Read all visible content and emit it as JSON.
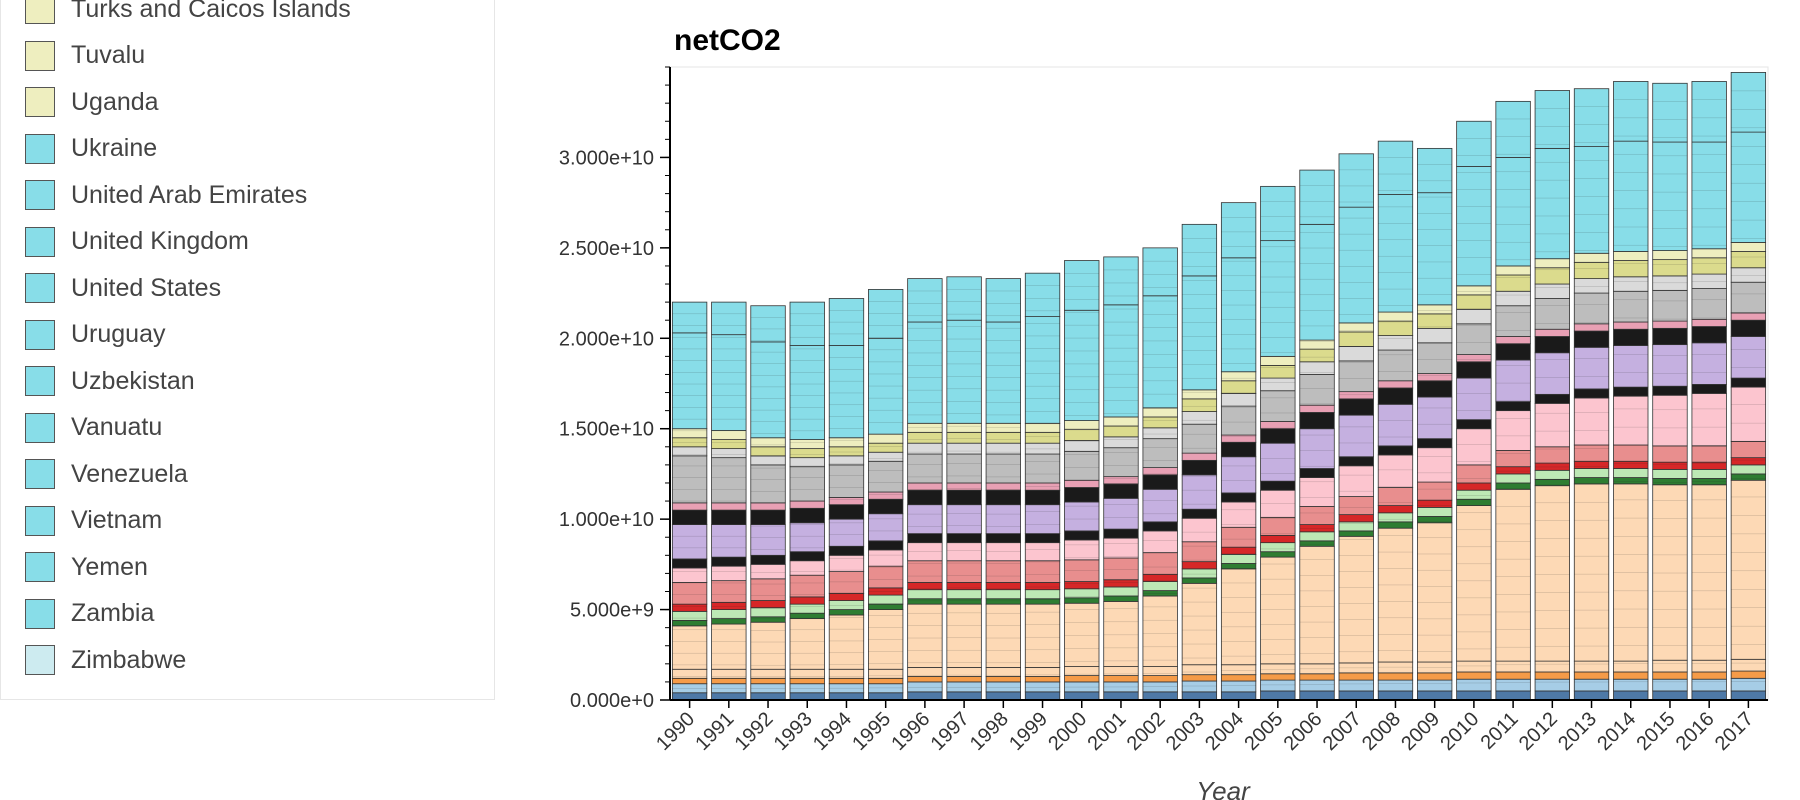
{
  "legend": {
    "items": [
      {
        "label": "Turks and Caicos Islands",
        "color": "#eeeebf"
      },
      {
        "label": "Tuvalu",
        "color": "#eeeebf"
      },
      {
        "label": "Uganda",
        "color": "#eeeebf"
      },
      {
        "label": "Ukraine",
        "color": "#88dde8"
      },
      {
        "label": "United Arab Emirates",
        "color": "#88dde8"
      },
      {
        "label": "United Kingdom",
        "color": "#88dde8"
      },
      {
        "label": "United States",
        "color": "#88dde8"
      },
      {
        "label": "Uruguay",
        "color": "#88dde8"
      },
      {
        "label": "Uzbekistan",
        "color": "#88dde8"
      },
      {
        "label": "Vanuatu",
        "color": "#88dde8"
      },
      {
        "label": "Venezuela",
        "color": "#88dde8"
      },
      {
        "label": "Vietnam",
        "color": "#88dde8"
      },
      {
        "label": "Yemen",
        "color": "#88dde8"
      },
      {
        "label": "Zambia",
        "color": "#88dde8"
      },
      {
        "label": "Zimbabwe",
        "color": "#cdebf0"
      }
    ]
  },
  "chart_data": {
    "type": "bar",
    "stacked": true,
    "title": "netCO2",
    "xlabel": "Year",
    "ylabel": "",
    "ylim": [
      0,
      35000000000
    ],
    "yticks": [
      {
        "value": 0,
        "label": "0.000e+0"
      },
      {
        "value": 5000000000,
        "label": "5.000e+9"
      },
      {
        "value": 10000000000,
        "label": "1.000e+10"
      },
      {
        "value": 15000000000,
        "label": "1.500e+10"
      },
      {
        "value": 20000000000,
        "label": "2.000e+10"
      },
      {
        "value": 25000000000,
        "label": "2.500e+10"
      },
      {
        "value": 30000000000,
        "label": "3.000e+10"
      }
    ],
    "categories": [
      "1990",
      "1991",
      "1992",
      "1993",
      "1994",
      "1995",
      "1996",
      "1997",
      "1998",
      "1999",
      "2000",
      "2001",
      "2002",
      "2003",
      "2004",
      "2005",
      "2006",
      "2007",
      "2008",
      "2009",
      "2010",
      "2011",
      "2012",
      "2013",
      "2014",
      "2015",
      "2016",
      "2017"
    ],
    "totals": [
      22000000000,
      22000000000,
      21800000000,
      22000000000,
      22200000000,
      22700000000,
      23300000000,
      23400000000,
      23300000000,
      23600000000,
      24300000000,
      24500000000,
      25000000000,
      26300000000,
      27500000000,
      28400000000,
      29300000000,
      30200000000,
      30900000000,
      30500000000,
      32000000000,
      33100000000,
      33700000000,
      33800000000,
      34200000000,
      34100000000,
      34200000000,
      34700000000
    ],
    "bands": [
      {
        "color": "#4e79a7",
        "values": [
          400000000.0,
          400000000.0,
          400000000.0,
          400000000.0,
          400000000.0,
          400000000.0,
          450000000.0,
          450000000.0,
          450000000.0,
          450000000.0,
          450000000.0,
          450000000.0,
          450000000.0,
          450000000.0,
          450000000.0,
          500000000.0,
          500000000.0,
          500000000.0,
          500000000.0,
          500000000.0,
          500000000.0,
          500000000.0,
          500000000.0,
          500000000.0,
          500000000.0,
          500000000.0,
          500000000.0,
          500000000.0
        ]
      },
      {
        "color": "#a6cde6",
        "values": [
          500000000.0,
          500000000.0,
          500000000.0,
          500000000.0,
          500000000.0,
          500000000.0,
          550000000.0,
          550000000.0,
          550000000.0,
          550000000.0,
          550000000.0,
          550000000.0,
          550000000.0,
          600000000.0,
          600000000.0,
          600000000.0,
          600000000.0,
          600000000.0,
          600000000.0,
          600000000.0,
          650000000.0,
          650000000.0,
          650000000.0,
          650000000.0,
          650000000.0,
          650000000.0,
          650000000.0,
          700000000.0
        ]
      },
      {
        "color": "#f59b48",
        "values": [
          300000000.0,
          300000000.0,
          300000000.0,
          300000000.0,
          300000000.0,
          300000000.0,
          300000000.0,
          300000000.0,
          300000000.0,
          300000000.0,
          350000000.0,
          350000000.0,
          350000000.0,
          350000000.0,
          350000000.0,
          350000000.0,
          350000000.0,
          400000000.0,
          400000000.0,
          400000000.0,
          400000000.0,
          400000000.0,
          400000000.0,
          400000000.0,
          400000000.0,
          400000000.0,
          400000000.0,
          400000000.0
        ]
      },
      {
        "color": "#fdd9b5",
        "values": [
          500000000.0,
          500000000.0,
          500000000.0,
          500000000.0,
          500000000.0,
          500000000.0,
          500000000.0,
          500000000.0,
          500000000.0,
          500000000.0,
          500000000.0,
          500000000.0,
          500000000.0,
          550000000.0,
          550000000.0,
          550000000.0,
          550000000.0,
          550000000.0,
          600000000.0,
          600000000.0,
          600000000.0,
          600000000.0,
          600000000.0,
          600000000.0,
          600000000.0,
          650000000.0,
          650000000.0,
          650000000.0
        ]
      },
      {
        "color": "#fdd9b5",
        "values": [
          2400000000.0,
          2500000000.0,
          2600000000.0,
          2800000000.0,
          3000000000.0,
          3300000000.0,
          3500000000.0,
          3500000000.0,
          3500000000.0,
          3500000000.0,
          3500000000.0,
          3600000000.0,
          3900000000.0,
          4500000000.0,
          5300000000.0,
          5900000000.0,
          6500000000.0,
          7000000000.0,
          7400000000.0,
          7700000000.0,
          8600000000.0,
          9500000000.0,
          9700000000.0,
          9800000000.0,
          9800000000.0,
          9700000000.0,
          9700000000.0,
          9900000000.0
        ]
      },
      {
        "color": "#2e7d32",
        "values": [
          300000000.0,
          300000000.0,
          300000000.0,
          300000000.0,
          300000000.0,
          300000000.0,
          300000000.0,
          300000000.0,
          300000000.0,
          300000000.0,
          300000000.0,
          300000000.0,
          300000000.0,
          300000000.0,
          300000000.0,
          300000000.0,
          300000000.0,
          300000000.0,
          350000000.0,
          350000000.0,
          350000000.0,
          350000000.0,
          350000000.0,
          350000000.0,
          350000000.0,
          350000000.0,
          350000000.0,
          350000000.0
        ]
      },
      {
        "color": "#bde8b5",
        "values": [
          500000000.0,
          500000000.0,
          500000000.0,
          500000000.0,
          500000000.0,
          500000000.0,
          500000000.0,
          500000000.0,
          500000000.0,
          500000000.0,
          500000000.0,
          500000000.0,
          500000000.0,
          500000000.0,
          500000000.0,
          500000000.0,
          500000000.0,
          500000000.0,
          500000000.0,
          500000000.0,
          500000000.0,
          500000000.0,
          500000000.0,
          500000000.0,
          500000000.0,
          500000000.0,
          500000000.0,
          500000000.0
        ]
      },
      {
        "color": "#d62728",
        "values": [
          400000000.0,
          400000000.0,
          400000000.0,
          400000000.0,
          400000000.0,
          400000000.0,
          400000000.0,
          400000000.0,
          400000000.0,
          400000000.0,
          400000000.0,
          400000000.0,
          400000000.0,
          400000000.0,
          400000000.0,
          400000000.0,
          400000000.0,
          400000000.0,
          400000000.0,
          400000000.0,
          400000000.0,
          400000000.0,
          400000000.0,
          400000000.0,
          400000000.0,
          400000000.0,
          400000000.0,
          400000000.0
        ]
      },
      {
        "color": "#e88e8e",
        "values": [
          1200000000.0,
          1200000000.0,
          1200000000.0,
          1200000000.0,
          1200000000.0,
          1200000000.0,
          1200000000.0,
          1200000000.0,
          1200000000.0,
          1200000000.0,
          1200000000.0,
          1200000000.0,
          1200000000.0,
          1100000000.0,
          1100000000.0,
          1000000000.0,
          1000000000.0,
          1000000000.0,
          1000000000.0,
          1000000000.0,
          1000000000.0,
          900000000.0,
          900000000.0,
          900000000.0,
          900000000.0,
          900000000.0,
          900000000.0,
          900000000.0
        ]
      },
      {
        "color": "#fcc5cf",
        "values": [
          800000000.0,
          800000000.0,
          800000000.0,
          800000000.0,
          900000000.0,
          900000000.0,
          1000000000.0,
          1000000000.0,
          1000000000.0,
          1000000000.0,
          1100000000.0,
          1100000000.0,
          1200000000.0,
          1300000000.0,
          1400000000.0,
          1500000000.0,
          1600000000.0,
          1700000000.0,
          1800000000.0,
          1900000000.0,
          2000000000.0,
          2200000000.0,
          2400000000.0,
          2600000000.0,
          2700000000.0,
          2800000000.0,
          2900000000.0,
          3000000000.0
        ]
      },
      {
        "color": "#1a1a1a",
        "values": [
          500000000.0,
          500000000.0,
          500000000.0,
          500000000.0,
          500000000.0,
          500000000.0,
          500000000.0,
          500000000.0,
          500000000.0,
          500000000.0,
          500000000.0,
          500000000.0,
          500000000.0,
          500000000.0,
          500000000.0,
          500000000.0,
          500000000.0,
          500000000.0,
          500000000.0,
          500000000.0,
          500000000.0,
          500000000.0,
          500000000.0,
          500000000.0,
          500000000.0,
          500000000.0,
          500000000.0,
          500000000.0
        ]
      },
      {
        "color": "#c5b0e0",
        "values": [
          1900000000.0,
          1800000000.0,
          1700000000.0,
          1600000000.0,
          1500000000.0,
          1500000000.0,
          1600000000.0,
          1600000000.0,
          1600000000.0,
          1600000000.0,
          1600000000.0,
          1700000000.0,
          1800000000.0,
          1900000000.0,
          2000000000.0,
          2100000000.0,
          2200000000.0,
          2300000000.0,
          2300000000.0,
          2300000000.0,
          2300000000.0,
          2300000000.0,
          2300000000.0,
          2300000000.0,
          2300000000.0,
          2300000000.0,
          2300000000.0,
          2300000000.0
        ]
      },
      {
        "color": "#1a1a1a",
        "values": [
          800000000.0,
          800000000.0,
          800000000.0,
          800000000.0,
          800000000.0,
          800000000.0,
          800000000.0,
          800000000.0,
          800000000.0,
          800000000.0,
          800000000.0,
          800000000.0,
          800000000.0,
          800000000.0,
          800000000.0,
          800000000.0,
          900000000.0,
          900000000.0,
          900000000.0,
          900000000.0,
          900000000.0,
          900000000.0,
          900000000.0,
          900000000.0,
          900000000.0,
          900000000.0,
          900000000.0,
          900000000.0
        ]
      },
      {
        "color": "#e8a0b4",
        "values": [
          400000000.0,
          400000000.0,
          400000000.0,
          400000000.0,
          400000000.0,
          400000000.0,
          400000000.0,
          400000000.0,
          400000000.0,
          400000000.0,
          400000000.0,
          400000000.0,
          400000000.0,
          400000000.0,
          400000000.0,
          400000000.0,
          400000000.0,
          400000000.0,
          400000000.0,
          400000000.0,
          400000000.0,
          400000000.0,
          400000000.0,
          400000000.0,
          400000000.0,
          400000000.0,
          400000000.0,
          400000000.0
        ]
      },
      {
        "color": "#bdbdbd",
        "values": [
          2600000000.0,
          2500000000.0,
          2100000000.0,
          1900000000.0,
          1800000000.0,
          1700000000.0,
          1600000000.0,
          1600000000.0,
          1600000000.0,
          1600000000.0,
          1600000000.0,
          1600000000.0,
          1600000000.0,
          1600000000.0,
          1600000000.0,
          1700000000.0,
          1700000000.0,
          1700000000.0,
          1700000000.0,
          1700000000.0,
          1700000000.0,
          1700000000.0,
          1700000000.0,
          1700000000.0,
          1700000000.0,
          1700000000.0,
          1700000000.0,
          1700000000.0
        ]
      },
      {
        "color": "#dadada",
        "values": [
          500000000.0,
          500000000.0,
          500000000.0,
          500000000.0,
          500000000.0,
          500000000.0,
          600000000.0,
          600000000.0,
          600000000.0,
          600000000.0,
          600000000.0,
          600000000.0,
          600000000.0,
          700000000.0,
          700000000.0,
          700000000.0,
          700000000.0,
          800000000.0,
          800000000.0,
          800000000.0,
          800000000.0,
          800000000.0,
          800000000.0,
          800000000.0,
          800000000.0,
          800000000.0,
          800000000.0,
          800000000.0
        ]
      },
      {
        "color": "#dbdb8d",
        "values": [
          500000000.0,
          500000000.0,
          500000000.0,
          500000000.0,
          500000000.0,
          500000000.0,
          600000000.0,
          600000000.0,
          600000000.0,
          600000000.0,
          600000000.0,
          600000000.0,
          600000000.0,
          700000000.0,
          700000000.0,
          700000000.0,
          700000000.0,
          800000000.0,
          800000000.0,
          800000000.0,
          800000000.0,
          900000000.0,
          900000000.0,
          900000000.0,
          900000000.0,
          900000000.0,
          900000000.0,
          900000000.0
        ]
      },
      {
        "color": "#eeeebf",
        "values": [
          500000000.0,
          500000000.0,
          500000000.0,
          500000000.0,
          500000000.0,
          500000000.0,
          500000000.0,
          500000000.0,
          500000000.0,
          500000000.0,
          500000000.0,
          500000000.0,
          500000000.0,
          500000000.0,
          500000000.0,
          500000000.0,
          500000000.0,
          500000000.0,
          500000000.0,
          500000000.0,
          500000000.0,
          500000000.0,
          500000000.0,
          500000000.0,
          500000000.0,
          500000000.0,
          500000000.0,
          500000000.0
        ]
      },
      {
        "color": "#88dde8",
        "values": [
          5300000000.0,
          5300000000.0,
          5300000000.0,
          5200000000.0,
          5100000000.0,
          5300000000.0,
          5600000000.0,
          5700000000.0,
          5600000000.0,
          5900000000.0,
          6100000000.0,
          6200000000.0,
          6200000000.0,
          6300000000.0,
          6300000000.0,
          6400000000.0,
          6400000000.0,
          6400000000.0,
          6500000000.0,
          6200000000.0,
          6600000000.0,
          6000000000.0,
          6100000000.0,
          5900000000.0,
          6100000000.0,
          6000000000.0,
          5900000000.0,
          6100000000.0
        ]
      }
    ]
  }
}
